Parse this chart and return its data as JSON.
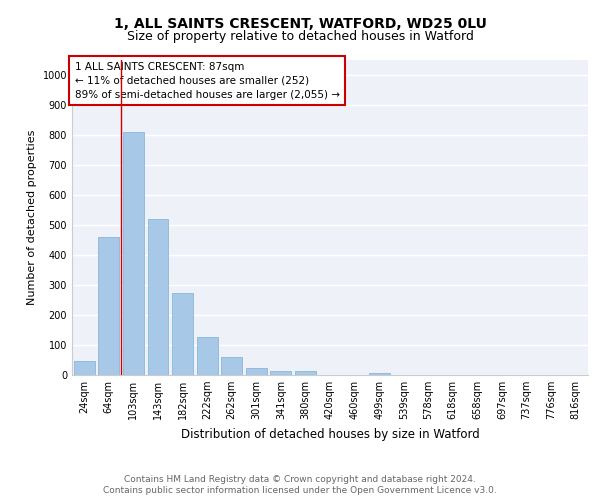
{
  "title1": "1, ALL SAINTS CRESCENT, WATFORD, WD25 0LU",
  "title2": "Size of property relative to detached houses in Watford",
  "xlabel": "Distribution of detached houses by size in Watford",
  "ylabel": "Number of detached properties",
  "categories": [
    "24sqm",
    "64sqm",
    "103sqm",
    "143sqm",
    "182sqm",
    "222sqm",
    "262sqm",
    "301sqm",
    "341sqm",
    "380sqm",
    "420sqm",
    "460sqm",
    "499sqm",
    "539sqm",
    "578sqm",
    "618sqm",
    "658sqm",
    "697sqm",
    "737sqm",
    "776sqm",
    "816sqm"
  ],
  "values": [
    47,
    460,
    810,
    520,
    275,
    128,
    60,
    22,
    12,
    12,
    0,
    0,
    8,
    0,
    0,
    0,
    0,
    0,
    0,
    0,
    0
  ],
  "bar_color": "#a8c8e8",
  "bar_edge_color": "#7ab0d4",
  "vline_x": 1.5,
  "vline_color": "#cc0000",
  "annotation_line1": "1 ALL SAINTS CRESCENT: 87sqm",
  "annotation_line2": "← 11% of detached houses are smaller (252)",
  "annotation_line3": "89% of semi-detached houses are larger (2,055) →",
  "annotation_box_color": "#ffffff",
  "annotation_box_edge_color": "#cc0000",
  "ylim": [
    0,
    1050
  ],
  "yticks": [
    0,
    100,
    200,
    300,
    400,
    500,
    600,
    700,
    800,
    900,
    1000
  ],
  "footer1": "Contains HM Land Registry data © Crown copyright and database right 2024.",
  "footer2": "Contains public sector information licensed under the Open Government Licence v3.0.",
  "bg_color": "#eef2f8",
  "grid_color": "#ffffff",
  "title1_fontsize": 10,
  "title2_fontsize": 9,
  "xlabel_fontsize": 8.5,
  "ylabel_fontsize": 8,
  "tick_fontsize": 7,
  "annotation_fontsize": 7.5,
  "footer_fontsize": 6.5
}
